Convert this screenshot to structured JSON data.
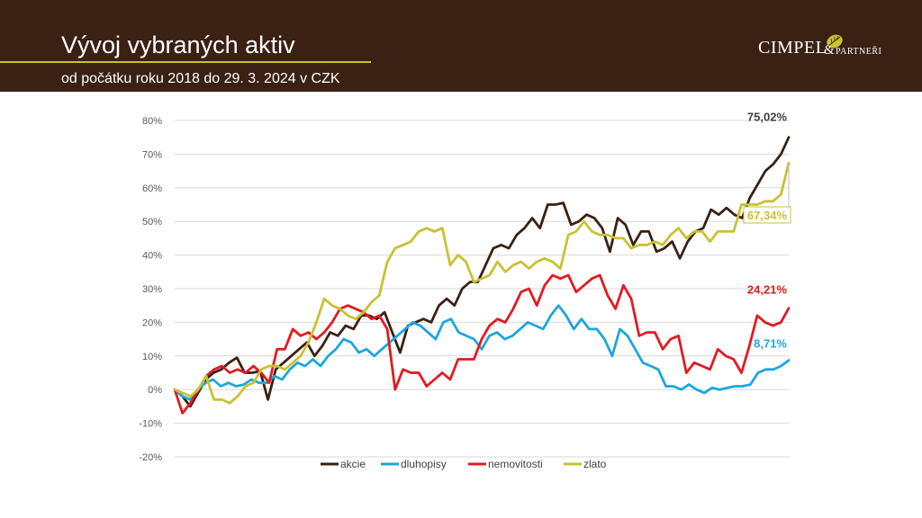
{
  "header": {
    "title": "Vývoj vybraných aktiv",
    "subtitle": "od počátku roku 2018 do 29. 3. 2024 v CZK",
    "logo_main": "CIMPEL",
    "logo_amp": "&",
    "logo_partners": "PARTNEŘI"
  },
  "colors": {
    "header_bg": "#3a2113",
    "accent": "#c9c232"
  },
  "chart_data": {
    "type": "line",
    "ylim": [
      -20,
      80
    ],
    "yticks": [
      -20,
      -10,
      0,
      10,
      20,
      30,
      40,
      50,
      60,
      70,
      80
    ],
    "ytick_labels": [
      "-20%",
      "-10%",
      "0%",
      "10%",
      "20%",
      "30%",
      "40%",
      "50%",
      "60%",
      "70%",
      "80%"
    ],
    "grid": true,
    "legend_position": "bottom",
    "series": [
      {
        "name": "akcie",
        "color": "#3a2113",
        "end_label": "75,02%",
        "values": [
          0,
          -2,
          -5,
          -1,
          3,
          5,
          6,
          8,
          9.5,
          5,
          5,
          5.5,
          -3,
          6,
          8,
          10,
          12,
          14,
          10,
          13,
          17,
          16,
          19,
          18,
          22,
          22,
          21,
          23,
          17,
          11,
          19,
          20,
          21,
          20,
          25,
          27,
          25,
          30,
          32,
          32,
          37,
          42,
          43,
          42,
          46,
          48,
          51,
          48,
          55,
          55,
          55.5,
          49,
          50,
          52,
          51,
          48,
          41,
          51,
          49,
          43,
          47,
          47,
          41,
          42,
          44,
          39,
          44,
          47,
          48,
          53.5,
          52,
          54,
          52,
          51,
          57,
          61,
          65,
          67,
          70,
          75
        ]
      },
      {
        "name": "dluhopisy",
        "color": "#1ea6dd",
        "end_label": "8,71%",
        "values": [
          0,
          -2,
          -3,
          0,
          2,
          3,
          1,
          2,
          1,
          1.5,
          3,
          2,
          2,
          4,
          3,
          6,
          8,
          7,
          9,
          7,
          10,
          12,
          15,
          14,
          11,
          12,
          10,
          12,
          14,
          16,
          18,
          20,
          19,
          17,
          15,
          20,
          21,
          17,
          16,
          15,
          12,
          16,
          17,
          15,
          16,
          18,
          20,
          19,
          18,
          22,
          25,
          22,
          18,
          21,
          18,
          18,
          15,
          10,
          18,
          16,
          12,
          8,
          7,
          6,
          1,
          1,
          0,
          1.5,
          0,
          -1,
          0.5,
          0,
          0.5,
          1,
          1,
          1.5,
          5,
          6,
          6,
          7,
          8.71
        ]
      },
      {
        "name": "nemovitosti",
        "color": "#e01b22",
        "end_label": "24,21%",
        "values": [
          0,
          -7,
          -4,
          0,
          4,
          6,
          7,
          5,
          6,
          5,
          7,
          5,
          2,
          12,
          12,
          18,
          16,
          17,
          15,
          17,
          20,
          24,
          25,
          24,
          23,
          21,
          22,
          18,
          0,
          6,
          5,
          5,
          1,
          3,
          5,
          3,
          9,
          9,
          9,
          15,
          19,
          21,
          20,
          24,
          29,
          30,
          25,
          31,
          34,
          33,
          34,
          29,
          31,
          33,
          34,
          28,
          24,
          31,
          27,
          16,
          17,
          17,
          12,
          15,
          16,
          5,
          8,
          7,
          6,
          12,
          10,
          9,
          5,
          13,
          22,
          20,
          19,
          20,
          24.21
        ]
      },
      {
        "name": "zlato",
        "color": "#c9c232",
        "end_label": "67,34%",
        "values": [
          0,
          -1,
          -2,
          0,
          4,
          -3,
          -3,
          -4,
          -2,
          1,
          2,
          6,
          7,
          7,
          6,
          8,
          10,
          14,
          20,
          27,
          25,
          24,
          22,
          21,
          23,
          26,
          28,
          38,
          42,
          43,
          44,
          47,
          48,
          47,
          48,
          37,
          40,
          38,
          32,
          33,
          34,
          38,
          35,
          37,
          38,
          36,
          38,
          39,
          38,
          36,
          46,
          47,
          50,
          47,
          46,
          46,
          45,
          45,
          42,
          43,
          43,
          44,
          43,
          46,
          48,
          45,
          47,
          47,
          44,
          47,
          47,
          47,
          55,
          55,
          55,
          56,
          56,
          58,
          67.34
        ]
      }
    ]
  }
}
